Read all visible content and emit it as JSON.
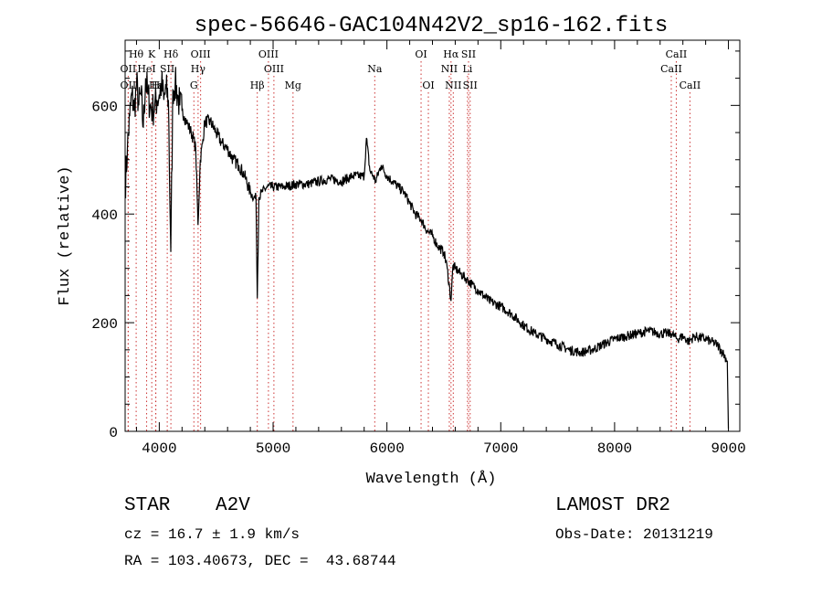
{
  "chart_data": {
    "type": "line",
    "title": "spec-56646-GAC104N42V2_sp16-162.fits",
    "xlabel": "Wavelength (Å)",
    "ylabel": "Flux (relative)",
    "xlim": [
      3700,
      9100
    ],
    "ylim": [
      0,
      720
    ],
    "xticks": [
      4000,
      5000,
      6000,
      7000,
      8000,
      9000
    ],
    "yticks": [
      0,
      200,
      400,
      600
    ],
    "grid": false,
    "line_color": "#000000",
    "marker_color": "#cc3333",
    "spectral_lines": [
      {
        "label": "Hθ",
        "wavelength": 3797,
        "row": 1
      },
      {
        "label": "K",
        "wavelength": 3934,
        "row": 1
      },
      {
        "label": "Hδ",
        "wavelength": 4102,
        "row": 1
      },
      {
        "label": "OIII",
        "wavelength": 4363,
        "row": 1
      },
      {
        "label": "OIII",
        "wavelength": 4959,
        "row": 1
      },
      {
        "label": "OI",
        "wavelength": 6300,
        "row": 1
      },
      {
        "label": "Hα",
        "wavelength": 6563,
        "row": 1
      },
      {
        "label": "SII",
        "wavelength": 6717,
        "row": 1
      },
      {
        "label": "CaII",
        "wavelength": 8542,
        "row": 1
      },
      {
        "label": "OII",
        "wavelength": 3727,
        "row": 2
      },
      {
        "label": "HeI",
        "wavelength": 3889,
        "row": 2
      },
      {
        "label": "SII",
        "wavelength": 4070,
        "row": 2
      },
      {
        "label": "Hγ",
        "wavelength": 4341,
        "row": 2
      },
      {
        "label": "OIII",
        "wavelength": 5007,
        "row": 2
      },
      {
        "label": "Na",
        "wavelength": 5893,
        "row": 2
      },
      {
        "label": "NII",
        "wavelength": 6548,
        "row": 2
      },
      {
        "label": "Li",
        "wavelength": 6708,
        "row": 2
      },
      {
        "label": "CaII",
        "wavelength": 8498,
        "row": 2
      },
      {
        "label": "OII",
        "wavelength": 3727,
        "row": 3
      },
      {
        "label": "Hε",
        "wavelength": 3970,
        "row": 3
      },
      {
        "label": "H",
        "wavelength": 3968,
        "row": 3
      },
      {
        "label": "G",
        "wavelength": 4304,
        "row": 3
      },
      {
        "label": "Hβ",
        "wavelength": 4861,
        "row": 3
      },
      {
        "label": "Mg",
        "wavelength": 5175,
        "row": 3
      },
      {
        "label": "OI",
        "wavelength": 6364,
        "row": 3
      },
      {
        "label": "NII",
        "wavelength": 6583,
        "row": 3
      },
      {
        "label": "SII",
        "wavelength": 6731,
        "row": 3
      },
      {
        "label": "CaII",
        "wavelength": 8662,
        "row": 3
      }
    ],
    "series": [
      {
        "x": [
          3700,
          3720,
          3740,
          3760,
          3780,
          3800,
          3820,
          3840,
          3860,
          3880,
          3900,
          3920,
          3940,
          3960,
          3980,
          4000,
          4020,
          4040,
          4060,
          4080,
          4101,
          4120,
          4140,
          4160,
          4180,
          4200,
          4220,
          4240,
          4260,
          4280,
          4300,
          4320,
          4340,
          4360,
          4380,
          4400,
          4450,
          4500,
          4550,
          4600,
          4650,
          4700,
          4750,
          4800,
          4830,
          4850,
          4861,
          4875,
          4900,
          4950,
          5000,
          5100,
          5200,
          5300,
          5400,
          5500,
          5600,
          5700,
          5800,
          5820,
          5850,
          5880,
          5900,
          5950,
          6000,
          6050,
          6100,
          6150,
          6200,
          6250,
          6300,
          6350,
          6400,
          6450,
          6500,
          6530,
          6563,
          6580,
          6600,
          6650,
          6700,
          6750,
          6800,
          6900,
          7000,
          7100,
          7200,
          7300,
          7400,
          7500,
          7600,
          7700,
          7800,
          7900,
          8000,
          8100,
          8200,
          8300,
          8400,
          8500,
          8550,
          8600,
          8650,
          8700,
          8800,
          8850,
          8900,
          8950,
          8990,
          9000
        ],
        "y": [
          450,
          520,
          580,
          620,
          590,
          640,
          600,
          620,
          560,
          650,
          620,
          600,
          590,
          600,
          610,
          620,
          640,
          610,
          630,
          610,
          330,
          630,
          640,
          620,
          600,
          590,
          580,
          570,
          560,
          550,
          540,
          520,
          380,
          500,
          530,
          570,
          570,
          550,
          530,
          520,
          500,
          490,
          470,
          440,
          430,
          430,
          245,
          430,
          440,
          450,
          450,
          450,
          455,
          455,
          460,
          465,
          460,
          470,
          470,
          540,
          480,
          470,
          460,
          490,
          470,
          460,
          450,
          440,
          420,
          400,
          390,
          370,
          360,
          340,
          330,
          300,
          240,
          305,
          300,
          290,
          280,
          270,
          260,
          240,
          230,
          215,
          195,
          180,
          170,
          160,
          150,
          145,
          150,
          160,
          170,
          175,
          180,
          185,
          180,
          180,
          170,
          175,
          165,
          175,
          170,
          165,
          160,
          145,
          130,
          5
        ]
      }
    ]
  },
  "info": {
    "object_type": "STAR",
    "subclass": "A2V",
    "survey": "LAMOST DR2",
    "velocity": "cz = 16.7 ± 1.9 km/s",
    "obs_date": "Obs-Date: 20131219",
    "coords": "RA = 103.40673, DEC =  43.68744"
  }
}
